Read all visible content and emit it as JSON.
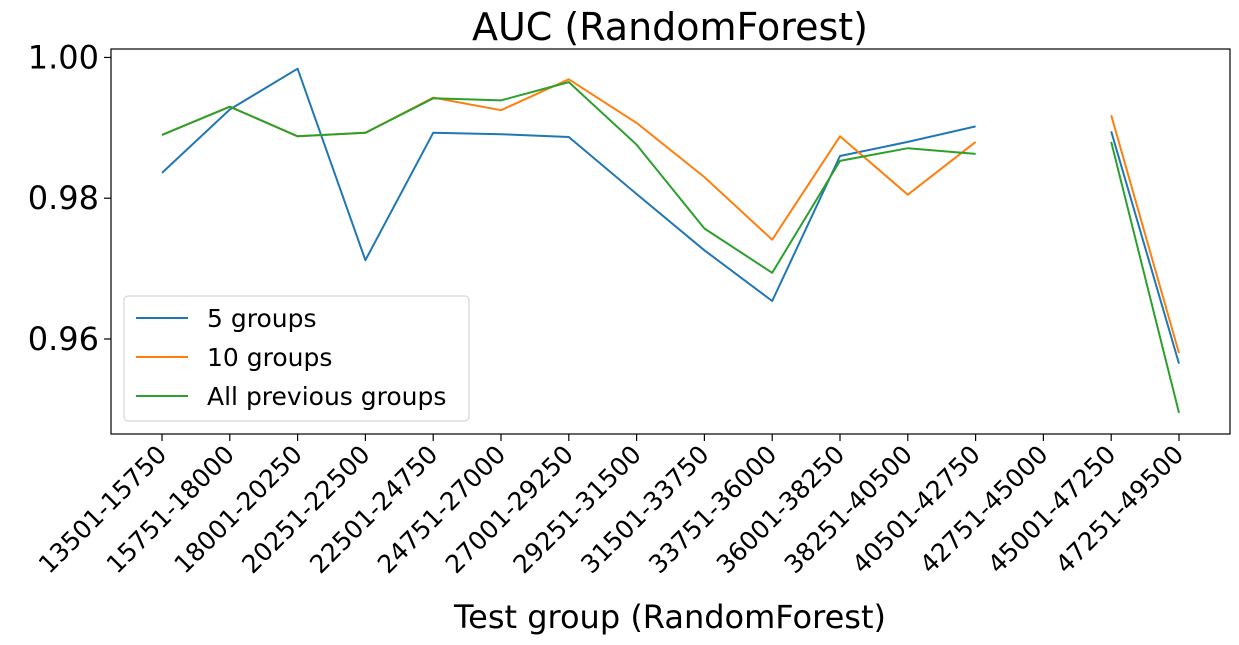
{
  "chart_data": {
    "type": "line",
    "title": "AUC (RandomForest)",
    "xlabel": "Test group (RandomForest)",
    "ylabel": "",
    "categories": [
      "13501-15750",
      "15751-18000",
      "18001-20250",
      "20251-22500",
      "22501-24750",
      "24751-27000",
      "27001-29250",
      "29251-31500",
      "31501-33750",
      "33751-36000",
      "36001-38250",
      "38251-40500",
      "40501-42750",
      "42751-45000",
      "45001-47250",
      "47251-49500"
    ],
    "ylim": [
      0.9465,
      1.0012
    ],
    "yticks": [
      0.96,
      0.98,
      1.0
    ],
    "ytick_labels": [
      "0.96",
      "0.98",
      "1.00"
    ],
    "grid": false,
    "legend_position": "lower-left",
    "series": [
      {
        "name": "5 groups",
        "color": "#1f77b4",
        "values": [
          0.9836,
          0.9926,
          0.9984,
          0.9712,
          0.9893,
          0.9891,
          0.9887,
          0.9806,
          0.9726,
          0.9654,
          0.986,
          0.988,
          0.9902,
          null,
          0.9895,
          0.9565
        ]
      },
      {
        "name": "10 groups",
        "color": "#ff7f0e",
        "values": [
          0.989,
          0.993,
          0.9888,
          0.9893,
          0.9943,
          0.9925,
          0.9969,
          0.9907,
          0.983,
          0.9741,
          0.9888,
          0.9805,
          0.988,
          null,
          0.9918,
          0.958
        ]
      },
      {
        "name": "All previous groups",
        "color": "#2ca02c",
        "values": [
          0.989,
          0.993,
          0.9888,
          0.9893,
          0.9942,
          0.9939,
          0.9965,
          0.9876,
          0.9757,
          0.9694,
          0.9853,
          0.9871,
          0.9863,
          null,
          0.988,
          0.9495
        ]
      }
    ]
  }
}
